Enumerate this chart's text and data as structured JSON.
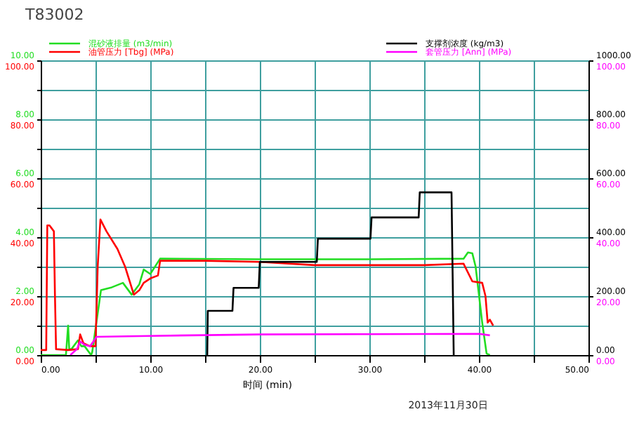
{
  "chart_data": {
    "type": "line",
    "title": "T83002",
    "xlabel": "时间 (min)",
    "annotations": [
      "2013年11月30日"
    ],
    "legend": "top",
    "grid": true,
    "xlim": [
      0,
      50
    ],
    "xticks": [
      {
        "value": 0,
        "label": "0.00"
      },
      {
        "value": 5,
        "label": null
      },
      {
        "value": 10,
        "label": "10.00"
      },
      {
        "value": 15,
        "label": null
      },
      {
        "value": 20,
        "label": "20.00"
      },
      {
        "value": 25,
        "label": null
      },
      {
        "value": 30,
        "label": "30.00"
      },
      {
        "value": 35,
        "label": null
      },
      {
        "value": 40,
        "label": "40.00"
      },
      {
        "value": 45,
        "label": null
      },
      {
        "value": 50,
        "label": "50.00"
      }
    ],
    "ylim": [
      0,
      10
    ],
    "yticks": [
      {
        "value": 0,
        "label": "0.00"
      },
      {
        "value": 1,
        "label": null
      },
      {
        "value": 2,
        "label": "2.00"
      },
      {
        "value": 3,
        "label": null
      },
      {
        "value": 4,
        "label": "4.00"
      },
      {
        "value": 5,
        "label": null
      },
      {
        "value": 6,
        "label": "6.00"
      },
      {
        "value": 7,
        "label": null
      },
      {
        "value": 8,
        "label": "8.00"
      },
      {
        "value": 9,
        "label": null
      },
      {
        "value": 10,
        "label": "10.00"
      }
    ],
    "y3lim": [
      0,
      100
    ],
    "y3ticks": [
      {
        "value": 0,
        "label": "0.00"
      },
      {
        "value": 20,
        "label": "20.00"
      },
      {
        "value": 40,
        "label": "40.00"
      },
      {
        "value": 60,
        "label": "60.00"
      },
      {
        "value": 80,
        "label": "80.00"
      },
      {
        "value": 100,
        "label": "100.00"
      }
    ],
    "y2lim": [
      0,
      1000
    ],
    "y2ticks": [
      {
        "value": 0,
        "label": "0.00"
      },
      {
        "value": 200,
        "label": "200.00"
      },
      {
        "value": 400,
        "label": "400.00"
      },
      {
        "value": 600,
        "label": "600.00"
      },
      {
        "value": 800,
        "label": "800.00"
      },
      {
        "value": 1000,
        "label": "1000.00"
      }
    ],
    "series": [
      {
        "name": "混砂液排量 (m3/min)",
        "color": "#22dd22",
        "axis": "y",
        "x": [
          0,
          2.3,
          2.5,
          2.6,
          2.8,
          3.4,
          3.7,
          4.0,
          4.6,
          4.7,
          5.5,
          6.5,
          7.5,
          8.3,
          9.0,
          9.4,
          10.0,
          10.9,
          20,
          30,
          38.6,
          39.0,
          39.4,
          39.7,
          40.3,
          40.7,
          41.0
        ],
        "values": [
          0,
          0,
          1.0,
          0.2,
          0.2,
          0.5,
          0.3,
          0.3,
          0,
          0.1,
          2.2,
          2.3,
          2.45,
          2.05,
          2.4,
          2.9,
          2.75,
          3.27,
          3.25,
          3.25,
          3.27,
          3.48,
          3.45,
          3.0,
          1.1,
          0.05,
          0
        ]
      },
      {
        "name": "油管压力 [Tbg] (MPa)",
        "color": "#ff0000",
        "axis": "y3",
        "x": [
          0,
          0.5,
          0.6,
          0.8,
          1.2,
          1.3,
          1.4,
          2.5,
          3.4,
          3.6,
          3.9,
          4.5,
          5.0,
          5.2,
          5.45,
          6.0,
          7.0,
          7.7,
          8.5,
          9.0,
          9.4,
          10.0,
          10.7,
          10.9,
          15,
          20,
          25,
          30,
          35,
          38.6,
          39.4,
          40.3,
          40.6,
          40.8,
          41.0,
          41.3
        ],
        "values": [
          1.7,
          1.7,
          44,
          44,
          42,
          20,
          2,
          1.7,
          2,
          7,
          4,
          3,
          3,
          30,
          46,
          42,
          36,
          30,
          20.5,
          22,
          24.5,
          26,
          27,
          32,
          32,
          31.6,
          30.5,
          30.5,
          30.5,
          31,
          25,
          24.5,
          20,
          11,
          12,
          10
        ]
      },
      {
        "name": "支撑剂浓度 (kg/m3)",
        "color": "#000000",
        "axis": "y2",
        "x": [
          15.2,
          15.25,
          17.5,
          17.6,
          19.9,
          20.0,
          25.2,
          25.3,
          30.1,
          30.2,
          34.5,
          34.6,
          37.5,
          37.7
        ],
        "values": [
          0,
          150,
          150,
          228,
          228,
          316,
          316,
          395,
          395,
          467,
          467,
          552,
          552,
          0
        ]
      },
      {
        "name": "套管压力 [Ann] (MPa)",
        "color": "#ff00ff",
        "axis": "y3",
        "x": [
          2.7,
          3.3,
          3.6,
          4.0,
          4.5,
          5.1,
          10,
          20,
          30,
          40,
          41
        ],
        "values": [
          0,
          2,
          4.6,
          3.5,
          3,
          6.2,
          6.5,
          7,
          7.1,
          7.2,
          6.7
        ]
      }
    ]
  }
}
